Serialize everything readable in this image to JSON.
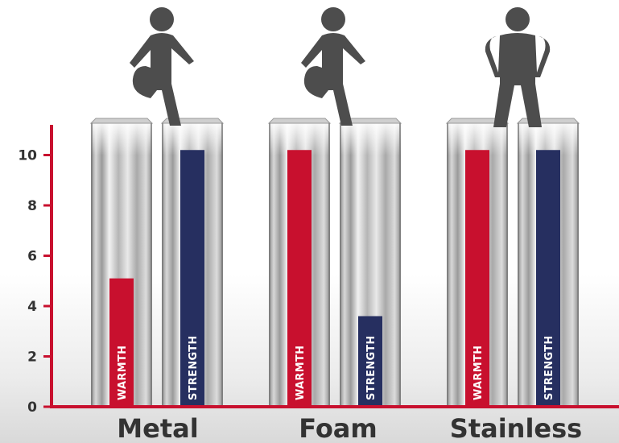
{
  "chart_data": {
    "type": "bar",
    "title": "",
    "xlabel": "",
    "ylabel": "",
    "categories": [
      "Metal",
      "Foam",
      "Stainless"
    ],
    "series": [
      {
        "name": "WARMTH",
        "color": "#c8102e",
        "values": [
          5.1,
          10.2,
          10.2
        ]
      },
      {
        "name": "STRENGTH",
        "color": "#262f60",
        "values": [
          10.2,
          3.6,
          10.2
        ]
      }
    ],
    "yticks": [
      0,
      2,
      4,
      6,
      8,
      10
    ],
    "ylim": [
      0,
      11.2
    ],
    "grid": false,
    "axis_color": "#c8102e",
    "decorations": {
      "bar_background": "metal-pillar",
      "category_figures": [
        "person-walking-icon",
        "person-walking-icon",
        "person-standing-hands-on-hips-icon"
      ]
    }
  }
}
